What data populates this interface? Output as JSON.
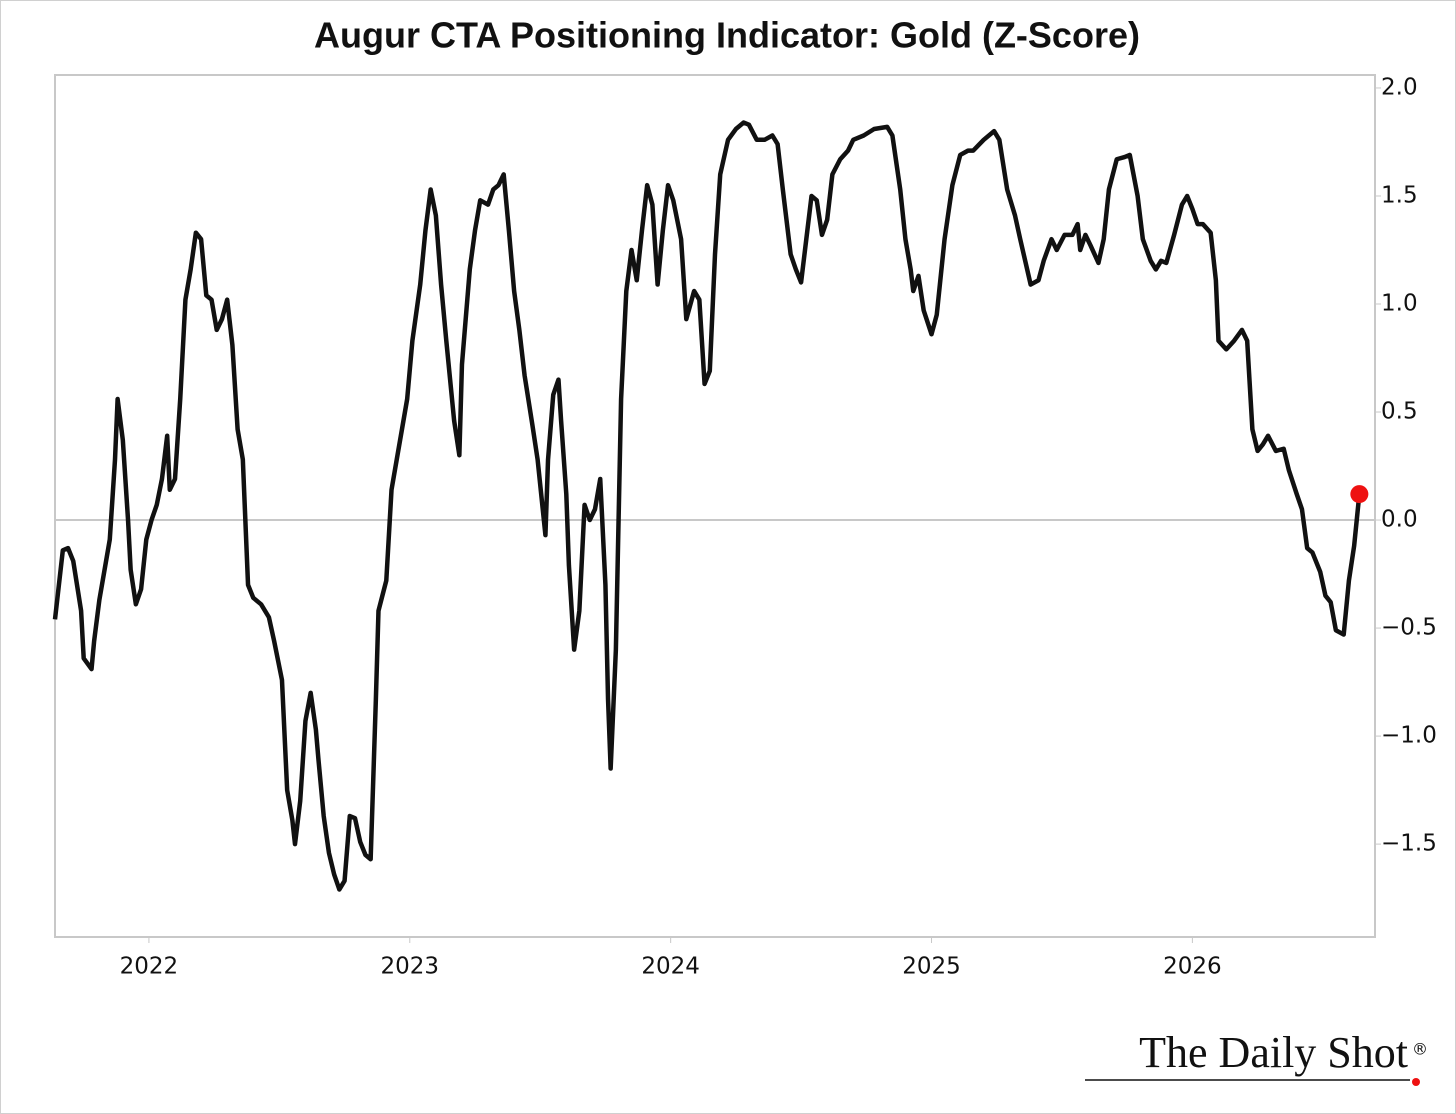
{
  "chart_data": {
    "type": "line",
    "title": "Augur CTA Positioning Indicator: Gold (Z-Score)",
    "watermark": "The Daily Shot",
    "watermark_mark": "®",
    "xlim": [
      2021.64,
      2026.7
    ],
    "xticks": [
      2022,
      2023,
      2024,
      2025,
      2026
    ],
    "ylim": [
      -1.93,
      2.06
    ],
    "yticks": [
      {
        "value": -1.5,
        "label": "−1.5"
      },
      {
        "value": -1.0,
        "label": "−1.0"
      },
      {
        "value": -0.5,
        "label": "−0.5"
      },
      {
        "value": 0,
        "label": "0.0"
      },
      0.5,
      {
        "value": 1,
        "label": "1.0"
      },
      1.5,
      {
        "value": 2,
        "label": "2.0"
      }
    ],
    "y_axis_side": "right",
    "reference_line": 0,
    "reference_color": "#c8c8c8",
    "end_marker_color": "#ee1111",
    "x": [
      2021.64,
      2021.67,
      2021.69,
      2021.71,
      2021.74,
      2021.75,
      2021.78,
      2021.79,
      2021.81,
      2021.83,
      2021.85,
      2021.87,
      2021.88,
      2021.9,
      2021.92,
      2021.93,
      2021.95,
      2021.97,
      2021.99,
      2022.01,
      2022.03,
      2022.05,
      2022.07,
      2022.08,
      2022.1,
      2022.12,
      2022.14,
      2022.16,
      2022.18,
      2022.2,
      2022.22,
      2022.24,
      2022.26,
      2022.28,
      2022.3,
      2022.32,
      2022.34,
      2022.36,
      2022.38,
      2022.4,
      2022.43,
      2022.46,
      2022.48,
      2022.51,
      2022.53,
      2022.55,
      2022.56,
      2022.58,
      2022.6,
      2022.62,
      2022.64,
      2022.65,
      2022.67,
      2022.69,
      2022.71,
      2022.73,
      2022.75,
      2022.77,
      2022.79,
      2022.81,
      2022.83,
      2022.85,
      2022.87,
      2022.88,
      2022.91,
      2022.93,
      2022.95,
      2022.97,
      2022.99,
      2023.01,
      2023.04,
      2023.06,
      2023.08,
      2023.1,
      2023.12,
      2023.14,
      2023.17,
      2023.19,
      2023.2,
      2023.23,
      2023.25,
      2023.27,
      2023.3,
      2023.32,
      2023.34,
      2023.36,
      2023.38,
      2023.4,
      2023.42,
      2023.44,
      2023.47,
      2023.49,
      2023.52,
      2023.53,
      2023.55,
      2023.57,
      2023.58,
      2023.6,
      2023.61,
      2023.63,
      2023.65,
      2023.67,
      2023.69,
      2023.71,
      2023.73,
      2023.75,
      2023.76,
      2023.77,
      2023.79,
      2023.81,
      2023.83,
      2023.85,
      2023.87,
      2023.89,
      2023.91,
      2023.93,
      2023.95,
      2023.97,
      2023.99,
      2024.01,
      2024.04,
      2024.06,
      2024.09,
      2024.11,
      2024.13,
      2024.15,
      2024.17,
      2024.19,
      2024.22,
      2024.25,
      2024.28,
      2024.3,
      2024.33,
      2024.36,
      2024.39,
      2024.41,
      2024.43,
      2024.46,
      2024.48,
      2024.5,
      2024.52,
      2024.54,
      2024.56,
      2024.58,
      2024.6,
      2024.62,
      2024.65,
      2024.68,
      2024.7,
      2024.74,
      2024.78,
      2024.83,
      2024.85,
      2024.88,
      2024.9,
      2024.92,
      2024.93,
      2024.95,
      2024.97,
      2025.0,
      2025.02,
      2025.05,
      2025.08,
      2025.11,
      2025.14,
      2025.16,
      2025.2,
      2025.24,
      2025.26,
      2025.29,
      2025.32,
      2025.34,
      2025.38,
      2025.41,
      2025.43,
      2025.46,
      2025.48,
      2025.51,
      2025.54,
      2025.56,
      2025.57,
      2025.59,
      2025.61,
      2025.64,
      2025.66,
      2025.68,
      2025.71,
      2025.74,
      2025.76,
      2025.79,
      2025.81,
      2025.84,
      2025.86,
      2025.88,
      2025.9,
      2025.93,
      2025.96,
      2025.98,
      2026.0,
      2026.02,
      2026.04,
      2026.07,
      2026.09,
      2026.1,
      2026.13,
      2026.16,
      2026.19,
      2026.21,
      2026.23,
      2026.25,
      2026.27,
      2026.29,
      2026.32,
      2026.35,
      2026.37,
      2026.4,
      2026.42,
      2026.44,
      2026.46,
      2026.49,
      2026.51,
      2026.53,
      2026.55,
      2026.58,
      2026.6,
      2026.62,
      2026.64
    ],
    "series": [
      {
        "color": "#111111",
        "values": [
          -0.46,
          -0.14,
          -0.13,
          -0.19,
          -0.42,
          -0.64,
          -0.69,
          -0.56,
          -0.37,
          -0.23,
          -0.09,
          0.28,
          0.56,
          0.37,
          0.0,
          -0.23,
          -0.39,
          -0.32,
          -0.09,
          0.0,
          0.07,
          0.19,
          0.39,
          0.14,
          0.19,
          0.56,
          1.02,
          1.16,
          1.33,
          1.3,
          1.04,
          1.02,
          0.88,
          0.93,
          1.02,
          0.81,
          0.42,
          0.28,
          -0.3,
          -0.36,
          -0.39,
          -0.45,
          -0.56,
          -0.74,
          -1.25,
          -1.39,
          -1.5,
          -1.3,
          -0.93,
          -0.8,
          -0.97,
          -1.11,
          -1.37,
          -1.54,
          -1.64,
          -1.71,
          -1.67,
          -1.37,
          -1.38,
          -1.49,
          -1.55,
          -1.57,
          -0.83,
          -0.42,
          -0.28,
          0.14,
          0.28,
          0.42,
          0.56,
          0.83,
          1.09,
          1.34,
          1.53,
          1.41,
          1.09,
          0.83,
          0.46,
          0.3,
          0.72,
          1.16,
          1.34,
          1.48,
          1.46,
          1.53,
          1.55,
          1.6,
          1.34,
          1.06,
          0.88,
          0.67,
          0.44,
          0.28,
          -0.07,
          0.28,
          0.58,
          0.65,
          0.46,
          0.12,
          -0.21,
          -0.6,
          -0.42,
          0.07,
          0.0,
          0.05,
          0.19,
          -0.3,
          -0.83,
          -1.15,
          -0.6,
          0.56,
          1.06,
          1.25,
          1.11,
          1.34,
          1.55,
          1.46,
          1.09,
          1.34,
          1.55,
          1.48,
          1.3,
          0.93,
          1.06,
          1.02,
          0.63,
          0.69,
          1.23,
          1.6,
          1.76,
          1.81,
          1.84,
          1.83,
          1.76,
          1.76,
          1.78,
          1.74,
          1.53,
          1.23,
          1.16,
          1.1,
          1.3,
          1.5,
          1.48,
          1.32,
          1.39,
          1.6,
          1.67,
          1.71,
          1.76,
          1.78,
          1.81,
          1.82,
          1.78,
          1.53,
          1.3,
          1.16,
          1.06,
          1.13,
          0.97,
          0.86,
          0.95,
          1.3,
          1.55,
          1.69,
          1.71,
          1.71,
          1.76,
          1.8,
          1.76,
          1.53,
          1.41,
          1.3,
          1.09,
          1.11,
          1.2,
          1.3,
          1.25,
          1.32,
          1.32,
          1.37,
          1.25,
          1.32,
          1.27,
          1.19,
          1.3,
          1.53,
          1.67,
          1.68,
          1.69,
          1.5,
          1.3,
          1.2,
          1.16,
          1.2,
          1.19,
          1.32,
          1.46,
          1.5,
          1.44,
          1.37,
          1.37,
          1.33,
          1.11,
          0.83,
          0.79,
          0.83,
          0.88,
          0.83,
          0.42,
          0.32,
          0.35,
          0.39,
          0.32,
          0.33,
          0.23,
          0.12,
          0.05,
          -0.13,
          -0.15,
          -0.24,
          -0.35,
          -0.38,
          -0.51,
          -0.53,
          -0.28,
          -0.12,
          0.12
        ]
      }
    ]
  }
}
